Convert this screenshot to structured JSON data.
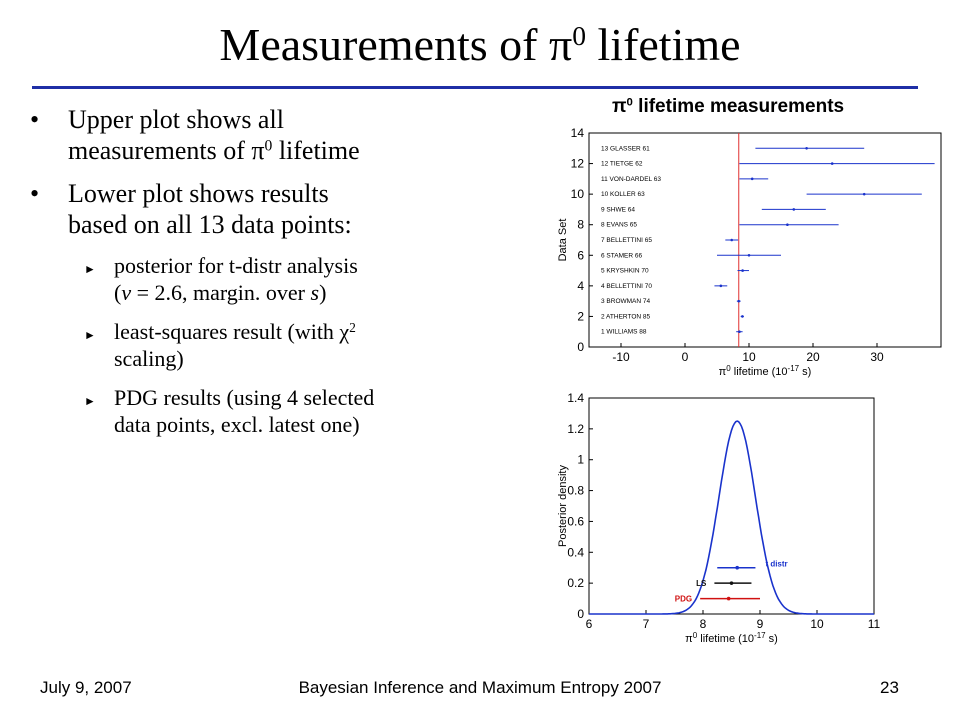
{
  "slide": {
    "title_main": "Measurements of π",
    "title_sup": "0",
    "title_tail": " lifetime"
  },
  "bullets": [
    {
      "line1": "Upper plot shows all",
      "line2a": "measurements of π",
      "line2sup": "0",
      "line2b": "  lifetime"
    },
    {
      "line1": "Lower plot shows results",
      "line2": "based on all 13 data points:"
    }
  ],
  "subbullets": [
    {
      "a": "posterior for t-distr analysis",
      "b": "(",
      "b_it1": "ν",
      "b_mid": " = 2.6, margin. over ",
      "b_it2": "s",
      "b_end": ")"
    },
    {
      "a_pre": "least-squares result (with χ",
      "a_sup": "2",
      "b": "scaling)"
    },
    {
      "a": "PDG results (using 4 selected",
      "b": "data points, excl. latest one)"
    }
  ],
  "chart_data": [
    {
      "type": "scatter",
      "title_pre": "π",
      "title_sup": "0",
      "title_post": " lifetime measurements",
      "xlabel_pre": "π",
      "xlabel_sup0": "0",
      "xlabel_mid": " lifetime (10",
      "xlabel_sup": "-17",
      "xlabel_post": " s)",
      "ylabel": "Data Set",
      "xlim": [
        -15,
        40
      ],
      "ylim": [
        0,
        14
      ],
      "xticks": [
        -10,
        0,
        10,
        20,
        30
      ],
      "yticks": [
        0,
        2,
        4,
        6,
        8,
        10,
        12,
        14
      ],
      "reference_line_x": 8.4,
      "points": [
        {
          "label": "1 WILLIAMS 88",
          "y": 1,
          "x": 8.5,
          "lo": 8.0,
          "hi": 9.0
        },
        {
          "label": "2 ATHERTON 85",
          "y": 2,
          "x": 8.97,
          "lo": 8.7,
          "hi": 9.2
        },
        {
          "label": "3 BROWMAN 74",
          "y": 3,
          "x": 8.4,
          "lo": 8.1,
          "hi": 8.7
        },
        {
          "label": "4 BELLETTINI 70",
          "y": 4,
          "x": 5.6,
          "lo": 4.6,
          "hi": 6.6
        },
        {
          "label": "5 KRYSHKIN 70",
          "y": 5,
          "x": 9.0,
          "lo": 8.2,
          "hi": 10.0
        },
        {
          "label": "6 STAMER 66",
          "y": 6,
          "x": 10.0,
          "lo": 5.0,
          "hi": 15.0
        },
        {
          "label": "7 BELLETTINI 65",
          "y": 7,
          "x": 7.3,
          "lo": 6.3,
          "hi": 8.3
        },
        {
          "label": "8 EVANS 65",
          "y": 8,
          "x": 16.0,
          "lo": 8.5,
          "hi": 24.0
        },
        {
          "label": "9 SHWE 64",
          "y": 9,
          "x": 17.0,
          "lo": 12.0,
          "hi": 22.0
        },
        {
          "label": "10 KOLLER 63",
          "y": 10,
          "x": 28.0,
          "lo": 19.0,
          "hi": 37.0
        },
        {
          "label": "11 VON-DARDEL 63",
          "y": 11,
          "x": 10.5,
          "lo": 8.5,
          "hi": 13.0
        },
        {
          "label": "12 TIETGE 62",
          "y": 12,
          "x": 23.0,
          "lo": 8.5,
          "hi": 39.0
        },
        {
          "label": "13 GLASSER 61",
          "y": 13,
          "x": 19.0,
          "lo": 11.0,
          "hi": 28.0
        }
      ]
    },
    {
      "type": "line",
      "xlabel_pre": "π",
      "xlabel_sup0": "0",
      "xlabel_mid": " lifetime (10",
      "xlabel_sup": "-17",
      "xlabel_post": " s)",
      "ylabel": "Posterior density",
      "xlim": [
        6,
        11
      ],
      "ylim": [
        0,
        1.4
      ],
      "xticks": [
        6,
        7,
        8,
        9,
        10,
        11
      ],
      "yticks": [
        0,
        0.2,
        0.4,
        0.6,
        0.8,
        1,
        1.2,
        1.4
      ],
      "series": [
        {
          "name": "",
          "peak_x": 8.6,
          "peak_y": 1.25,
          "sigma": 0.32,
          "color": "#1a33cc"
        }
      ],
      "intervals": [
        {
          "name": "t distr",
          "y": 0.3,
          "center": 8.6,
          "lo": 8.25,
          "hi": 8.92,
          "color": "#1a33cc"
        },
        {
          "name": "LS",
          "y": 0.2,
          "center": 8.5,
          "lo": 8.2,
          "hi": 8.85,
          "color": "#111111"
        },
        {
          "name": "PDG",
          "y": 0.1,
          "center": 8.45,
          "lo": 7.95,
          "hi": 9.0,
          "color": "#d01010"
        }
      ]
    }
  ],
  "footer": {
    "date": "July 9, 2007",
    "conference": "Bayesian Inference and Maximum Entropy 2007",
    "page": "23"
  },
  "colors": {
    "title_rule": "#1f2fa6",
    "points": "#1a33cc",
    "reference_line": "#e03030"
  }
}
